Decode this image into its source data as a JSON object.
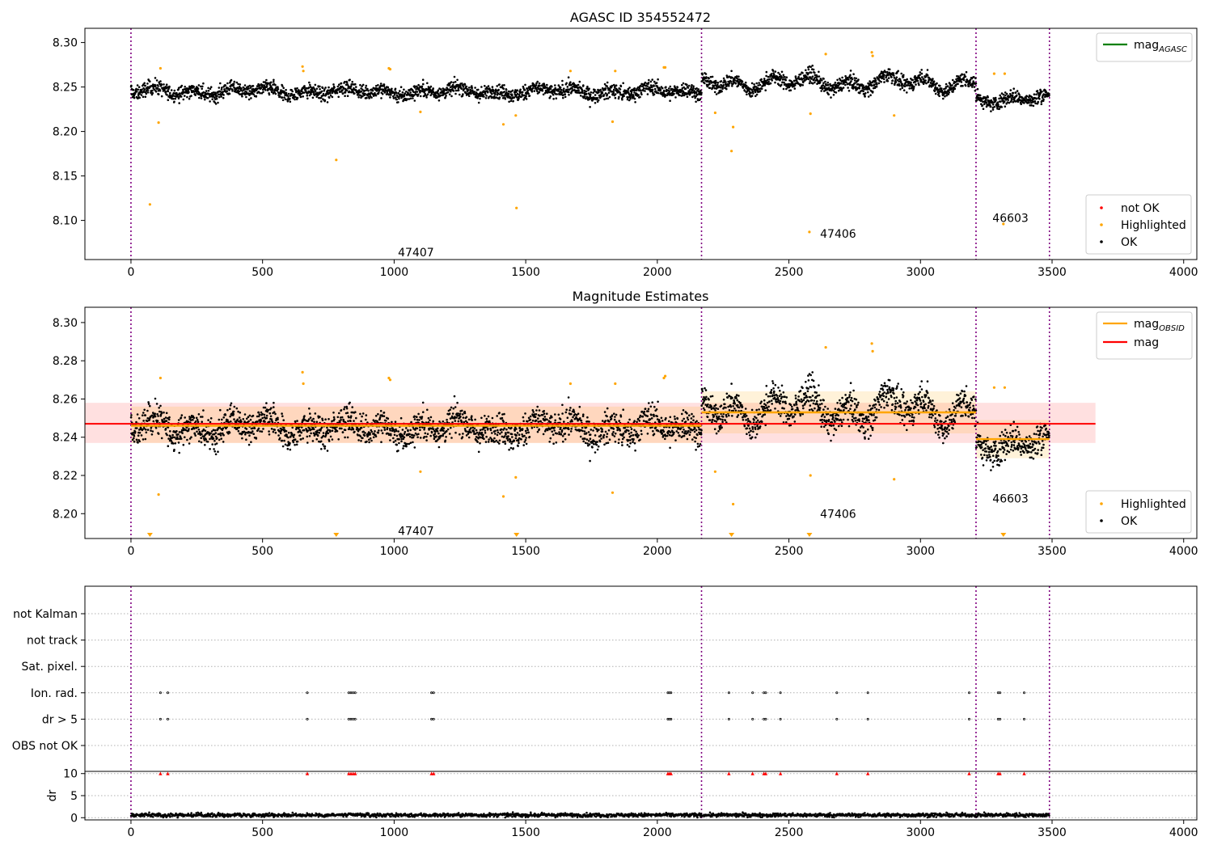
{
  "figure": {
    "background": "#ffffff"
  },
  "colors": {
    "ok": "#000000",
    "highlighted": "#ffa500",
    "not_ok": "#ff0000",
    "mag_agasc": "#008000",
    "mag_obsid": "#ffa500",
    "mag": "#ff0000",
    "obs_boundary": "#800080"
  },
  "chart_data": [
    {
      "type": "scatter",
      "title": "AGASC ID 354552472",
      "xlim": [
        -175,
        4050
      ],
      "ylim": [
        8.056,
        8.316
      ],
      "xticks": [
        0,
        500,
        1000,
        1500,
        2000,
        2500,
        3000,
        3500,
        4000
      ],
      "yticks": [
        8.1,
        8.15,
        8.2,
        8.25,
        8.3
      ],
      "ytick_labels": [
        "8.10",
        "8.15",
        "8.20",
        "8.25",
        "8.30"
      ],
      "obs_boundaries": [
        0,
        2168,
        3211,
        3490
      ],
      "obs_labels": [
        {
          "text": "47407",
          "x": 1083,
          "y": 8.064
        },
        {
          "text": "47406",
          "x": 2687,
          "y": 8.085
        },
        {
          "text": "46603",
          "x": 3342,
          "y": 8.103
        }
      ],
      "legend_top": [
        {
          "label": "mag",
          "sub": "AGASC",
          "color": "#008000",
          "kind": "line"
        }
      ],
      "legend_bottom": [
        {
          "label": "not OK",
          "color": "#ff0000",
          "kind": "dot"
        },
        {
          "label": "Highlighted",
          "color": "#ffa500",
          "kind": "dot"
        },
        {
          "label": "OK",
          "color": "#000000",
          "kind": "dot"
        }
      ],
      "segments": [
        {
          "x": [
            0,
            2168
          ],
          "center": 8.245,
          "amp": 0.0055,
          "noise": 0.0045
        },
        {
          "x": [
            2168,
            3211
          ],
          "center": 8.255,
          "amp": 0.01,
          "noise": 0.0045
        },
        {
          "x": [
            3211,
            3490
          ],
          "center": 8.237,
          "amp": 0.006,
          "noise": 0.0045
        }
      ],
      "highlighted": [
        [
          72,
          8.118
        ],
        [
          105,
          8.21
        ],
        [
          112,
          8.271
        ],
        [
          652,
          8.273
        ],
        [
          655,
          8.268
        ],
        [
          780,
          8.168
        ],
        [
          980,
          8.271
        ],
        [
          985,
          8.27
        ],
        [
          1100,
          8.222
        ],
        [
          1415,
          8.208
        ],
        [
          1462,
          8.218
        ],
        [
          1465,
          8.114
        ],
        [
          1670,
          8.268
        ],
        [
          1830,
          8.211
        ],
        [
          1840,
          8.268
        ],
        [
          2025,
          8.272
        ],
        [
          2030,
          8.272
        ],
        [
          2220,
          8.221
        ],
        [
          2282,
          8.178
        ],
        [
          2288,
          8.205
        ],
        [
          2578,
          8.087
        ],
        [
          2582,
          8.22
        ],
        [
          2640,
          8.287
        ],
        [
          2815,
          8.289
        ],
        [
          2818,
          8.285
        ],
        [
          2900,
          8.218
        ],
        [
          3280,
          8.265
        ],
        [
          3315,
          8.096
        ],
        [
          3320,
          8.265
        ]
      ]
    },
    {
      "type": "scatter",
      "title": "Magnitude Estimates",
      "xlim": [
        -175,
        4050
      ],
      "ylim": [
        8.187,
        8.308
      ],
      "xticks": [
        0,
        500,
        1000,
        1500,
        2000,
        2500,
        3000,
        3500,
        4000
      ],
      "yticks": [
        8.2,
        8.22,
        8.24,
        8.26,
        8.28,
        8.3
      ],
      "ytick_labels": [
        "8.20",
        "8.22",
        "8.24",
        "8.26",
        "8.28",
        "8.30"
      ],
      "obs_boundaries": [
        0,
        2168,
        3211,
        3490
      ],
      "obs_labels": [
        {
          "text": "47407",
          "x": 1083,
          "y": 8.191
        },
        {
          "text": "47406",
          "x": 2687,
          "y": 8.2
        },
        {
          "text": "46603",
          "x": 3342,
          "y": 8.208
        }
      ],
      "legend_top": [
        {
          "label": "mag",
          "sub": "OBSID",
          "color": "#ffa500",
          "kind": "line"
        },
        {
          "label": "mag",
          "sub": "",
          "color": "#ff0000",
          "kind": "line"
        }
      ],
      "legend_bottom": [
        {
          "label": "Highlighted",
          "color": "#ffa500",
          "kind": "dot"
        },
        {
          "label": "OK",
          "color": "#000000",
          "kind": "dot"
        }
      ],
      "mag": {
        "value": 8.247,
        "band": [
          8.237,
          8.258
        ],
        "x": [
          -175,
          3665
        ]
      },
      "mag_obsid": [
        {
          "x": [
            0,
            2168
          ],
          "value": 8.246,
          "band": [
            8.237,
            8.256
          ]
        },
        {
          "x": [
            2168,
            3211
          ],
          "value": 8.253,
          "band": [
            8.242,
            8.264
          ]
        },
        {
          "x": [
            3211,
            3490
          ],
          "value": 8.239,
          "band": [
            8.229,
            8.249
          ]
        }
      ],
      "below_markers": [
        72,
        780,
        1465,
        2282,
        2578,
        3315
      ],
      "segments": [
        {
          "x": [
            0,
            2168
          ],
          "center": 8.245,
          "amp": 0.0055,
          "noise": 0.0045
        },
        {
          "x": [
            2168,
            3211
          ],
          "center": 8.255,
          "amp": 0.01,
          "noise": 0.0045
        },
        {
          "x": [
            3211,
            3490
          ],
          "center": 8.237,
          "amp": 0.006,
          "noise": 0.0045
        }
      ],
      "highlighted": [
        [
          105,
          8.21
        ],
        [
          112,
          8.271
        ],
        [
          652,
          8.274
        ],
        [
          655,
          8.268
        ],
        [
          980,
          8.271
        ],
        [
          985,
          8.27
        ],
        [
          1100,
          8.222
        ],
        [
          1415,
          8.209
        ],
        [
          1462,
          8.219
        ],
        [
          1670,
          8.268
        ],
        [
          1830,
          8.211
        ],
        [
          1840,
          8.268
        ],
        [
          2025,
          8.271
        ],
        [
          2030,
          8.272
        ],
        [
          2220,
          8.222
        ],
        [
          2288,
          8.205
        ],
        [
          2582,
          8.22
        ],
        [
          2640,
          8.287
        ],
        [
          2815,
          8.289
        ],
        [
          2818,
          8.285
        ],
        [
          2900,
          8.218
        ],
        [
          3280,
          8.266
        ],
        [
          3320,
          8.266
        ]
      ]
    },
    {
      "type": "scatter",
      "title": "",
      "xlim": [
        -175,
        4050
      ],
      "categories": [
        "not Kalman",
        "not track",
        "Sat. pixel.",
        "Ion. rad.",
        "dr > 5",
        "OBS not OK"
      ],
      "obs_boundaries": [
        0,
        2168,
        3211,
        3490
      ],
      "flag_x": [
        112,
        140,
        670,
        828,
        836,
        844,
        852,
        1142,
        1150,
        2040,
        2046,
        2052,
        2272,
        2362,
        2405,
        2412,
        2468,
        2682,
        2800,
        3185,
        3295,
        3302,
        3394
      ],
      "flags": {
        "Ion. rad.": [
          112,
          140,
          670,
          828,
          836,
          844,
          852,
          1142,
          1150,
          2040,
          2046,
          2052,
          2272,
          2362,
          2405,
          2412,
          2468,
          2682,
          2800,
          3185,
          3295,
          3302,
          3394
        ],
        "dr > 5": [
          112,
          140,
          670,
          828,
          836,
          844,
          852,
          1142,
          1150,
          2040,
          2046,
          2052,
          2272,
          2362,
          2405,
          2412,
          2468,
          2682,
          2800,
          3185,
          3295,
          3302,
          3394
        ]
      }
    },
    {
      "type": "scatter",
      "title": "",
      "ylabel": "dr",
      "xlim": [
        -175,
        4050
      ],
      "ylim": [
        -0.5,
        10.5
      ],
      "xticks": [
        0,
        500,
        1000,
        1500,
        2000,
        2500,
        3000,
        3500,
        4000
      ],
      "yticks": [
        0,
        5,
        10
      ],
      "ytick_labels": [
        "0",
        "5",
        "10"
      ],
      "obs_boundaries": [
        0,
        2168,
        3211,
        3490
      ],
      "points": {
        "x": [
          0,
          3490
        ],
        "typical": 0.6,
        "spread": 0.35
      },
      "clipped_markers": [
        112,
        140,
        670,
        828,
        836,
        844,
        852,
        1142,
        1150,
        2040,
        2046,
        2052,
        2272,
        2362,
        2405,
        2412,
        2468,
        2682,
        2800,
        3185,
        3295,
        3302,
        3394
      ]
    }
  ]
}
